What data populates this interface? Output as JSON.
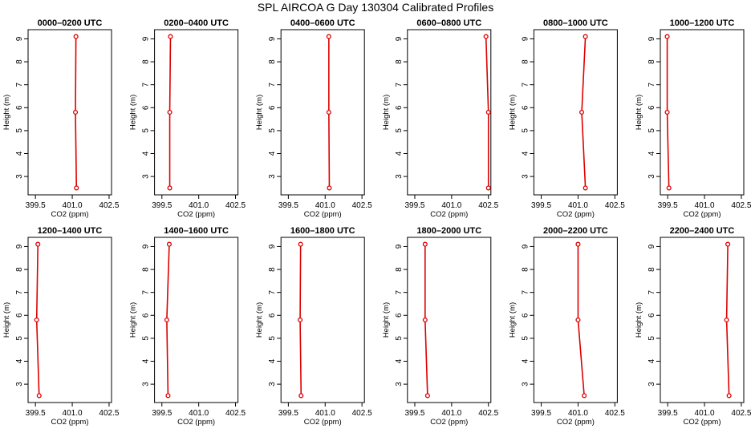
{
  "figure": {
    "title": "SPL AIRCOA G  Day 130304  Calibrated Profiles"
  },
  "colors": {
    "series": "#dd0000",
    "axis": "#000000",
    "background": "#ffffff"
  },
  "chart_data": [
    {
      "type": "line",
      "title": "0000–0200 UTC",
      "xlabel": "CO2 (ppm)",
      "ylabel": "Height (m)",
      "xlim": [
        399.2,
        402.6
      ],
      "ylim": [
        2.2,
        9.4
      ],
      "xticks": [
        399.5,
        401.0,
        402.5
      ],
      "xtick_labels": [
        "399.5",
        "401.0",
        "402.5"
      ],
      "yticks": [
        3,
        4,
        5,
        6,
        7,
        8,
        9
      ],
      "ytick_labels": [
        "3",
        "4",
        "5",
        "6",
        "7",
        "8",
        "9"
      ],
      "series": [
        {
          "x": [
            401.15,
            401.13,
            401.17
          ],
          "y": [
            9.1,
            5.8,
            2.5
          ]
        }
      ]
    },
    {
      "type": "line",
      "title": "0200–0400 UTC",
      "xlabel": "CO2 (ppm)",
      "ylabel": "Height (m)",
      "xlim": [
        399.2,
        402.6
      ],
      "ylim": [
        2.2,
        9.4
      ],
      "xticks": [
        399.5,
        401.0,
        402.5
      ],
      "xtick_labels": [
        "399.5",
        "401.0",
        "402.5"
      ],
      "yticks": [
        3,
        4,
        5,
        6,
        7,
        8,
        9
      ],
      "ytick_labels": [
        "3",
        "4",
        "5",
        "6",
        "7",
        "8",
        "9"
      ],
      "series": [
        {
          "x": [
            399.85,
            399.82,
            399.82
          ],
          "y": [
            9.1,
            5.8,
            2.5
          ]
        }
      ]
    },
    {
      "type": "line",
      "title": "0400–0600 UTC",
      "xlabel": "CO2 (ppm)",
      "ylabel": "Height (m)",
      "xlim": [
        399.2,
        402.6
      ],
      "ylim": [
        2.2,
        9.4
      ],
      "xticks": [
        399.5,
        401.0,
        402.5
      ],
      "xtick_labels": [
        "399.5",
        "401.0",
        "402.5"
      ],
      "yticks": [
        3,
        4,
        5,
        6,
        7,
        8,
        9
      ],
      "ytick_labels": [
        "3",
        "4",
        "5",
        "6",
        "7",
        "8",
        "9"
      ],
      "series": [
        {
          "x": [
            401.15,
            401.15,
            401.17
          ],
          "y": [
            9.1,
            5.8,
            2.5
          ]
        }
      ]
    },
    {
      "type": "line",
      "title": "0600–0800 UTC",
      "xlabel": "CO2 (ppm)",
      "ylabel": "Height (m)",
      "xlim": [
        399.2,
        402.6
      ],
      "ylim": [
        2.2,
        9.4
      ],
      "xticks": [
        399.5,
        401.0,
        402.5
      ],
      "xtick_labels": [
        "399.5",
        "401.0",
        "402.5"
      ],
      "yticks": [
        3,
        4,
        5,
        6,
        7,
        8,
        9
      ],
      "ytick_labels": [
        "3",
        "4",
        "5",
        "6",
        "7",
        "8",
        "9"
      ],
      "series": [
        {
          "x": [
            402.4,
            402.5,
            402.5
          ],
          "y": [
            9.1,
            5.8,
            2.5
          ]
        }
      ]
    },
    {
      "type": "line",
      "title": "0800–1000 UTC",
      "xlabel": "CO2 (ppm)",
      "ylabel": "Height (m)",
      "xlim": [
        399.2,
        402.6
      ],
      "ylim": [
        2.2,
        9.4
      ],
      "xticks": [
        399.5,
        401.0,
        402.5
      ],
      "xtick_labels": [
        "399.5",
        "401.0",
        "402.5"
      ],
      "yticks": [
        3,
        4,
        5,
        6,
        7,
        8,
        9
      ],
      "ytick_labels": [
        "3",
        "4",
        "5",
        "6",
        "7",
        "8",
        "9"
      ],
      "series": [
        {
          "x": [
            401.3,
            401.15,
            401.3
          ],
          "y": [
            9.1,
            5.8,
            2.5
          ]
        }
      ]
    },
    {
      "type": "line",
      "title": "1000–1200 UTC",
      "xlabel": "CO2 (ppm)",
      "ylabel": "Height (m)",
      "xlim": [
        399.2,
        402.6
      ],
      "ylim": [
        2.2,
        9.4
      ],
      "xticks": [
        399.5,
        401.0,
        402.5
      ],
      "xtick_labels": [
        "399.5",
        "401.0",
        "402.5"
      ],
      "yticks": [
        3,
        4,
        5,
        6,
        7,
        8,
        9
      ],
      "ytick_labels": [
        "3",
        "4",
        "5",
        "6",
        "7",
        "8",
        "9"
      ],
      "series": [
        {
          "x": [
            399.48,
            399.48,
            399.55
          ],
          "y": [
            9.1,
            5.8,
            2.5
          ]
        }
      ]
    },
    {
      "type": "line",
      "title": "1200–1400 UTC",
      "xlabel": "CO2 (ppm)",
      "ylabel": "Height (m)",
      "xlim": [
        399.2,
        402.6
      ],
      "ylim": [
        2.2,
        9.4
      ],
      "xticks": [
        399.5,
        401.0,
        402.5
      ],
      "xtick_labels": [
        "399.5",
        "401.0",
        "402.5"
      ],
      "yticks": [
        3,
        4,
        5,
        6,
        7,
        8,
        9
      ],
      "ytick_labels": [
        "3",
        "4",
        "5",
        "6",
        "7",
        "8",
        "9"
      ],
      "series": [
        {
          "x": [
            399.6,
            399.55,
            399.65
          ],
          "y": [
            9.1,
            5.8,
            2.5
          ]
        }
      ]
    },
    {
      "type": "line",
      "title": "1400–1600 UTC",
      "xlabel": "CO2 (ppm)",
      "ylabel": "Height (m)",
      "xlim": [
        399.2,
        402.6
      ],
      "ylim": [
        2.2,
        9.4
      ],
      "xticks": [
        399.5,
        401.0,
        402.5
      ],
      "xtick_labels": [
        "399.5",
        "401.0",
        "402.5"
      ],
      "yticks": [
        3,
        4,
        5,
        6,
        7,
        8,
        9
      ],
      "ytick_labels": [
        "3",
        "4",
        "5",
        "6",
        "7",
        "8",
        "9"
      ],
      "series": [
        {
          "x": [
            399.8,
            399.7,
            399.75
          ],
          "y": [
            9.1,
            5.8,
            2.5
          ]
        }
      ]
    },
    {
      "type": "line",
      "title": "1600–1800 UTC",
      "xlabel": "CO2 (ppm)",
      "ylabel": "Height (m)",
      "xlim": [
        399.2,
        402.6
      ],
      "ylim": [
        2.2,
        9.4
      ],
      "xticks": [
        399.5,
        401.0,
        402.5
      ],
      "xtick_labels": [
        "399.5",
        "401.0",
        "402.5"
      ],
      "yticks": [
        3,
        4,
        5,
        6,
        7,
        8,
        9
      ],
      "ytick_labels": [
        "3",
        "4",
        "5",
        "6",
        "7",
        "8",
        "9"
      ],
      "series": [
        {
          "x": [
            400.0,
            399.98,
            400.02
          ],
          "y": [
            9.1,
            5.8,
            2.5
          ]
        }
      ]
    },
    {
      "type": "line",
      "title": "1800–2000 UTC",
      "xlabel": "CO2 (ppm)",
      "ylabel": "Height (m)",
      "xlim": [
        399.2,
        402.6
      ],
      "ylim": [
        2.2,
        9.4
      ],
      "xticks": [
        399.5,
        401.0,
        402.5
      ],
      "xtick_labels": [
        "399.5",
        "401.0",
        "402.5"
      ],
      "yticks": [
        3,
        4,
        5,
        6,
        7,
        8,
        9
      ],
      "ytick_labels": [
        "3",
        "4",
        "5",
        "6",
        "7",
        "8",
        "9"
      ],
      "series": [
        {
          "x": [
            399.92,
            399.92,
            400.02
          ],
          "y": [
            9.1,
            5.8,
            2.5
          ]
        }
      ]
    },
    {
      "type": "line",
      "title": "2000–2200 UTC",
      "xlabel": "CO2 (ppm)",
      "ylabel": "Height (m)",
      "xlim": [
        399.2,
        402.6
      ],
      "ylim": [
        2.2,
        9.4
      ],
      "xticks": [
        399.5,
        401.0,
        402.5
      ],
      "xtick_labels": [
        "399.5",
        "401.0",
        "402.5"
      ],
      "yticks": [
        3,
        4,
        5,
        6,
        7,
        8,
        9
      ],
      "ytick_labels": [
        "3",
        "4",
        "5",
        "6",
        "7",
        "8",
        "9"
      ],
      "series": [
        {
          "x": [
            401.0,
            401.0,
            401.25
          ],
          "y": [
            9.1,
            5.8,
            2.5
          ]
        }
      ]
    },
    {
      "type": "line",
      "title": "2200–2400 UTC",
      "xlabel": "CO2 (ppm)",
      "ylabel": "Height (m)",
      "xlim": [
        399.2,
        402.6
      ],
      "ylim": [
        2.2,
        9.4
      ],
      "xticks": [
        399.5,
        401.0,
        402.5
      ],
      "xtick_labels": [
        "399.5",
        "401.0",
        "402.5"
      ],
      "yticks": [
        3,
        4,
        5,
        6,
        7,
        8,
        9
      ],
      "ytick_labels": [
        "3",
        "4",
        "5",
        "6",
        "7",
        "8",
        "9"
      ],
      "series": [
        {
          "x": [
            401.95,
            401.9,
            402.0
          ],
          "y": [
            9.1,
            5.8,
            2.5
          ]
        }
      ]
    }
  ]
}
